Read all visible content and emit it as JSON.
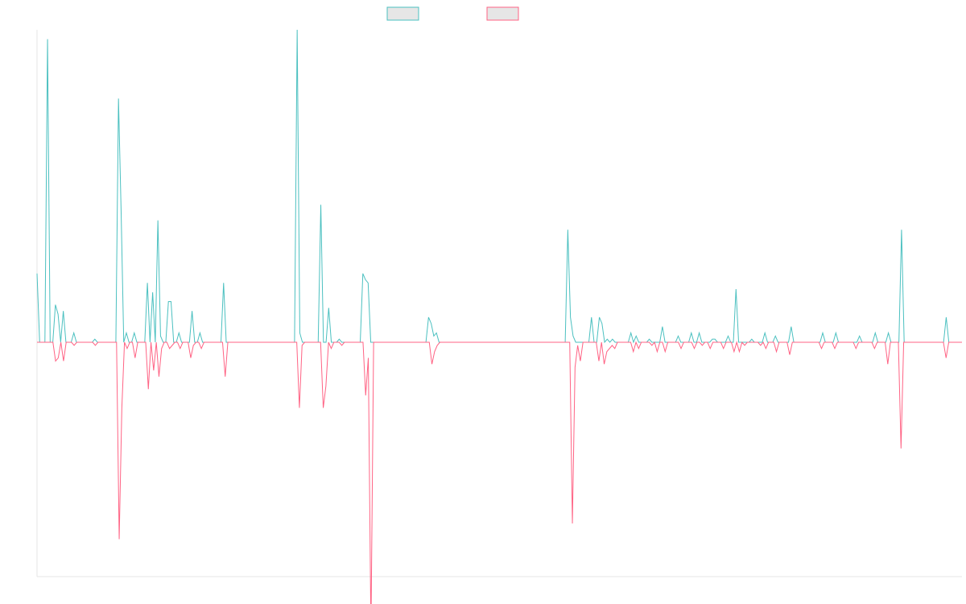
{
  "chart_data": {
    "type": "line",
    "title": "",
    "xlabel": "",
    "ylabel": "",
    "legend": {
      "position": "top-center",
      "entries": [
        "",
        ""
      ]
    },
    "grid": false,
    "ylim": [
      -75,
      100
    ],
    "baseline": 0,
    "series": [
      {
        "name": "",
        "color": "#4bc0c0",
        "values": [
          22,
          0,
          0,
          0,
          97,
          0,
          0,
          12,
          9,
          0,
          10,
          0,
          0,
          0,
          3,
          0,
          0,
          0,
          0,
          0,
          0,
          0,
          1,
          0,
          0,
          0,
          0,
          0,
          0,
          0,
          0,
          78,
          42,
          0,
          3,
          0,
          0,
          3,
          0,
          0,
          0,
          0,
          19,
          0,
          16,
          0,
          39,
          2,
          0,
          0,
          13,
          13,
          0,
          0,
          3,
          0,
          0,
          0,
          0,
          10,
          0,
          0,
          3,
          0,
          0,
          0,
          0,
          0,
          0,
          0,
          0,
          19,
          0,
          0,
          0,
          0,
          0,
          0,
          0,
          0,
          0,
          0,
          0,
          0,
          0,
          0,
          0,
          0,
          0,
          0,
          0,
          0,
          0,
          0,
          0,
          0,
          0,
          0,
          0,
          100,
          3,
          0,
          0,
          0,
          0,
          0,
          0,
          0,
          44,
          0,
          0,
          11,
          0,
          0,
          0,
          1,
          0,
          0,
          0,
          0,
          0,
          0,
          0,
          0,
          22,
          20,
          19,
          0,
          0,
          0,
          0,
          0,
          0,
          0,
          0,
          0,
          0,
          0,
          0,
          0,
          0,
          0,
          0,
          0,
          0,
          0,
          0,
          0,
          0,
          8,
          6,
          2,
          3,
          0,
          0,
          0,
          0,
          0,
          0,
          0,
          0,
          0,
          0,
          0,
          0,
          0,
          0,
          0,
          0,
          0,
          0,
          0,
          0,
          0,
          0,
          0,
          0,
          0,
          0,
          0,
          0,
          0,
          0,
          0,
          0,
          0,
          0,
          0,
          0,
          0,
          0,
          0,
          0,
          0,
          0,
          0,
          0,
          0,
          0,
          0,
          0,
          0,
          36,
          8,
          2,
          0,
          0,
          0,
          0,
          0,
          0,
          8,
          0,
          0,
          8,
          6,
          0,
          1,
          0,
          1,
          0,
          0,
          0,
          0,
          0,
          0,
          3,
          0,
          2,
          0,
          0,
          0,
          0,
          1,
          0,
          0,
          0,
          0,
          5,
          0,
          0,
          0,
          0,
          0,
          2,
          0,
          0,
          0,
          0,
          3,
          0,
          0,
          3,
          0,
          0,
          0,
          0,
          1,
          1,
          0,
          0,
          0,
          0,
          2,
          0,
          0,
          17,
          0,
          0,
          0,
          0,
          0,
          1,
          0,
          0,
          0,
          0,
          3,
          0,
          0,
          0,
          2,
          0,
          0,
          0,
          0,
          0,
          5,
          0,
          0,
          0,
          0,
          0,
          0,
          0,
          0,
          0,
          0,
          0,
          3,
          0,
          0,
          0,
          0,
          3,
          0,
          0,
          0,
          0,
          0,
          0,
          0,
          0,
          2,
          0,
          0,
          0,
          0,
          0,
          3,
          0,
          0,
          0,
          0,
          3,
          0,
          0,
          0,
          0,
          36,
          0,
          0,
          0,
          0,
          0,
          0,
          0,
          0,
          0,
          0,
          0,
          0,
          0,
          0,
          0,
          0,
          8,
          0,
          0,
          0,
          0,
          0,
          0
        ]
      },
      {
        "name": "",
        "color": "#ff6384",
        "values": [
          0,
          0,
          0,
          0,
          0,
          0,
          0,
          -6,
          -5,
          0,
          -6,
          0,
          0,
          0,
          -1,
          0,
          0,
          0,
          0,
          0,
          0,
          0,
          -1,
          0,
          0,
          0,
          0,
          0,
          0,
          0,
          0,
          -63,
          -21,
          0,
          -2,
          0,
          0,
          -5,
          0,
          0,
          0,
          0,
          -15,
          0,
          -9,
          0,
          -11,
          -2,
          0,
          0,
          -2,
          -1,
          0,
          0,
          -2,
          0,
          0,
          0,
          -5,
          -1,
          0,
          0,
          -2,
          0,
          0,
          0,
          0,
          0,
          0,
          0,
          0,
          -11,
          0,
          0,
          0,
          0,
          0,
          0,
          0,
          0,
          0,
          0,
          0,
          0,
          0,
          0,
          0,
          0,
          0,
          0,
          0,
          0,
          0,
          0,
          0,
          0,
          0,
          0,
          0,
          -21,
          -1,
          0,
          0,
          0,
          0,
          0,
          0,
          0,
          -21,
          -14,
          0,
          -2,
          0,
          0,
          0,
          -1,
          0,
          0,
          0,
          0,
          0,
          0,
          0,
          0,
          -17,
          -5,
          -93,
          0,
          0,
          0,
          0,
          0,
          0,
          0,
          0,
          0,
          0,
          0,
          0,
          0,
          0,
          0,
          0,
          0,
          0,
          0,
          0,
          0,
          0,
          -7,
          -3,
          -1,
          0,
          0,
          0,
          0,
          0,
          0,
          0,
          0,
          0,
          0,
          0,
          0,
          0,
          0,
          0,
          0,
          0,
          0,
          0,
          0,
          0,
          0,
          0,
          0,
          0,
          0,
          0,
          0,
          0,
          0,
          0,
          0,
          0,
          0,
          0,
          0,
          0,
          0,
          0,
          0,
          0,
          0,
          0,
          0,
          0,
          0,
          0,
          0,
          0,
          0,
          -58,
          -8,
          -1,
          -6,
          0,
          0,
          0,
          0,
          0,
          0,
          -6,
          0,
          -7,
          -3,
          -2,
          -1,
          -2,
          0,
          0,
          0,
          0,
          0,
          0,
          -3,
          0,
          -2,
          0,
          0,
          0,
          0,
          -1,
          0,
          -3,
          0,
          0,
          -3,
          0,
          0,
          0,
          0,
          0,
          -2,
          0,
          0,
          0,
          0,
          -2,
          0,
          0,
          -1,
          0,
          0,
          -2,
          0,
          0,
          0,
          0,
          -2,
          0,
          0,
          0,
          -3,
          0,
          -3,
          0,
          -1,
          0,
          0,
          0,
          0,
          0,
          -1,
          0,
          -2,
          0,
          0,
          0,
          -3,
          0,
          0,
          0,
          0,
          -4,
          0,
          0,
          0,
          0,
          0,
          0,
          0,
          0,
          0,
          0,
          0,
          -2,
          0,
          0,
          0,
          0,
          -2,
          0,
          0,
          0,
          0,
          0,
          0,
          0,
          -2,
          0,
          0,
          0,
          0,
          0,
          0,
          -2,
          0,
          0,
          0,
          0,
          -7,
          0,
          0,
          0,
          0,
          -34,
          0,
          0,
          0,
          0,
          0,
          0,
          0,
          0,
          0,
          0,
          0,
          0,
          0,
          0,
          0,
          0,
          -5,
          0,
          0,
          0,
          0,
          0,
          0
        ]
      }
    ]
  }
}
